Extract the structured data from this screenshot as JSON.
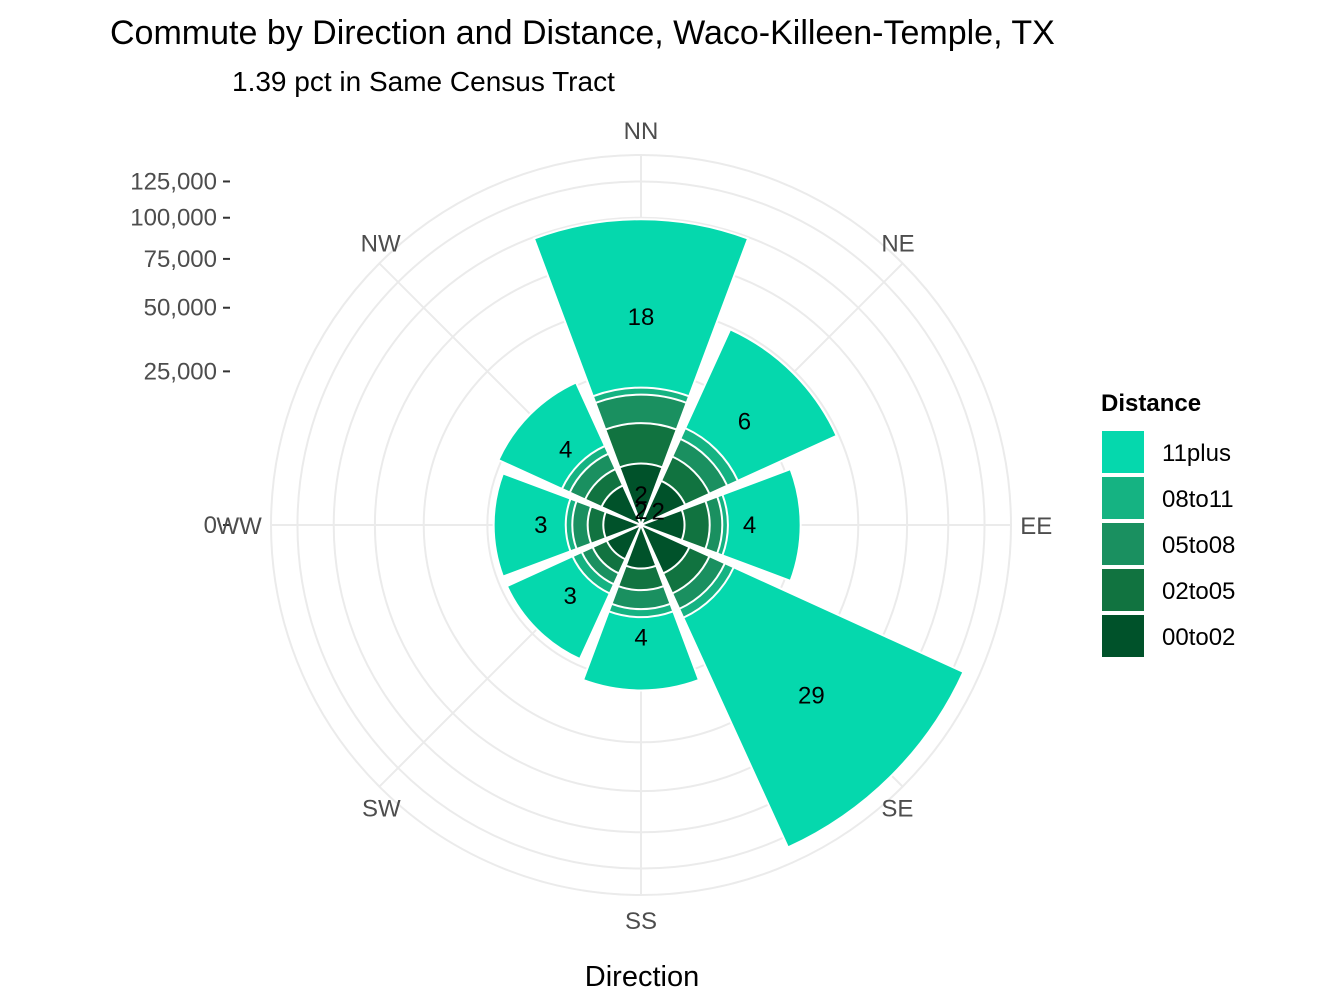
{
  "chart_data": {
    "type": "bar",
    "coord": "polar",
    "title": "Commute by Direction and Distance, Waco-Killeen-Temple, TX",
    "subtitle": "1.39 pct in Same Census Tract",
    "xlabel": "Direction",
    "ylabel": "",
    "categories": [
      "NN",
      "NE",
      "EE",
      "SE",
      "SS",
      "SW",
      "WW",
      "NW"
    ],
    "y_ticks": [
      0,
      25000,
      50000,
      75000,
      100000,
      125000
    ],
    "y_tick_labels": [
      "0",
      "25,000",
      "50,000",
      "75,000",
      "100,000",
      "125,000"
    ],
    "ylim": [
      0,
      145000
    ],
    "grid": true,
    "legend": {
      "title": "Distance",
      "position": "right",
      "entries": [
        "11plus",
        "08to11",
        "05to08",
        "02to05",
        "00to02"
      ]
    },
    "series": [
      {
        "name": "00to02",
        "color": "#00522a",
        "values": [
          4000,
          2500,
          2000,
          3000,
          2000,
          1500,
          1500,
          2000
        ]
      },
      {
        "name": "02to05",
        "color": "#117340",
        "values": [
          11000,
          6000,
          5000,
          6000,
          4500,
          3000,
          3000,
          4000
        ]
      },
      {
        "name": "05to08",
        "color": "#1a9060",
        "values": [
          18000,
          9500,
          7000,
          9000,
          7500,
          4500,
          5000,
          6500
        ]
      },
      {
        "name": "08to11",
        "color": "#15b382",
        "values": [
          20000,
          12000,
          8000,
          11000,
          9000,
          6000,
          6000,
          8000
        ]
      },
      {
        "name": "11plus",
        "color": "#05d8ad",
        "values": [
          99000,
          49000,
          27000,
          133000,
          29000,
          23000,
          23000,
          26000
        ]
      }
    ],
    "bar_labels": [
      "18",
      "6",
      "4",
      "29",
      "4",
      "3",
      "3",
      "4"
    ],
    "inner_labels": [
      "2",
      "2",
      "2"
    ]
  }
}
